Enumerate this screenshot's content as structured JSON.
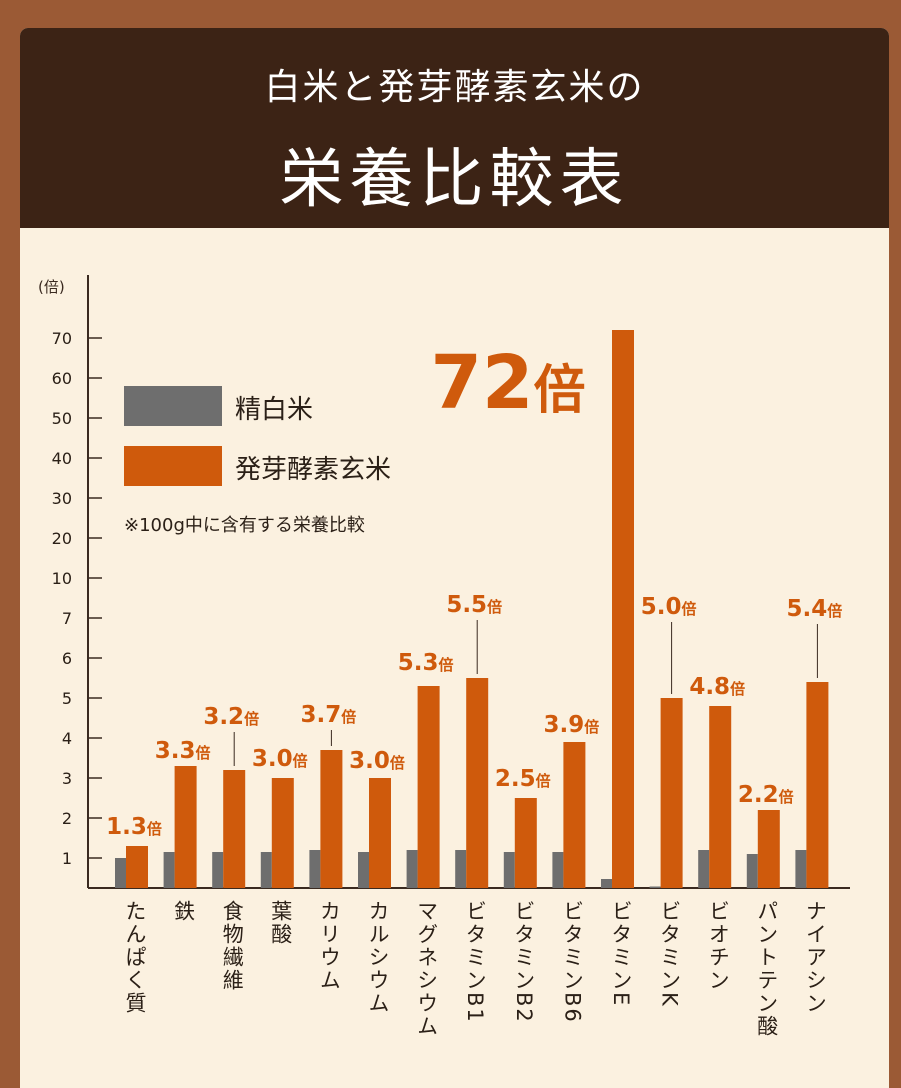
{
  "header": {
    "title_line1": "白米と発芽酵素玄米の",
    "title_line2": "栄養比較表"
  },
  "colors": {
    "white_rice": "#6e6e6e",
    "brown_rice": "#cf5a0c",
    "header_bg": "#3c2315",
    "panel_bg": "#fbf1e0",
    "frame": "#9b5a35"
  },
  "chart_data": {
    "type": "bar",
    "ylabel": "(倍)",
    "y_ticks": [
      1,
      2,
      3,
      4,
      5,
      6,
      7,
      10,
      20,
      30,
      40,
      50,
      60,
      70
    ],
    "y_scale": "piecewise (linear 0–7, then steps of 10)",
    "note": "※100g中に含有する栄養比較",
    "legend_position": "left",
    "categories": [
      "たんぱく質",
      "鉄",
      "食物繊維",
      "葉酸",
      "カリウム",
      "カルシウム",
      "マグネシウム",
      "ビタミンB1",
      "ビタミンB2",
      "ビタミンB6",
      "ビタミンE",
      "ビタミンK",
      "ビオチン",
      "パントテン酸",
      "ナイアシン"
    ],
    "series": [
      {
        "name": "精白米",
        "values": [
          1,
          1.15,
          1.15,
          1.15,
          1.2,
          1.15,
          1.2,
          1.2,
          1.15,
          1.15,
          0.3,
          0.05,
          1.2,
          1.1,
          1.2
        ]
      },
      {
        "name": "発芽酵素玄米",
        "values": [
          1.3,
          3.3,
          3.2,
          3.0,
          3.7,
          3.0,
          5.3,
          5.5,
          2.5,
          3.9,
          72,
          5.0,
          4.8,
          2.2,
          5.4
        ]
      }
    ],
    "data_labels": [
      "1.3",
      "3.3",
      "3.2",
      "3.0",
      "3.7",
      "3.0",
      "5.3",
      "5.5",
      "2.5",
      "3.9",
      "72",
      "5.0",
      "4.8",
      "2.2",
      "5.4"
    ],
    "label_unit": "倍"
  }
}
